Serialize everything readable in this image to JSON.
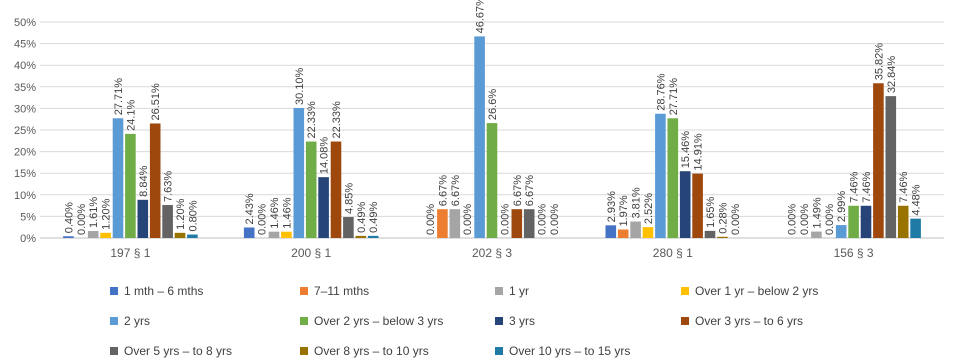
{
  "chart_data": {
    "type": "bar",
    "categories": [
      "197 § 1",
      "200 § 1",
      "202 § 3",
      "280 § 1",
      "156 § 3"
    ],
    "ylim": [
      0,
      50
    ],
    "yticks": [
      "0%",
      "5%",
      "10%",
      "15%",
      "20%",
      "25%",
      "30%",
      "35%",
      "40%",
      "45%",
      "50%"
    ],
    "grid": true,
    "legend_position": "bottom",
    "series": [
      {
        "name": "1 mth – 6 mths",
        "color": "#4472C4",
        "values": [
          0.4,
          2.43,
          0.0,
          2.93,
          0.0
        ],
        "labels": [
          "0.40%",
          "2.43%",
          "0.00%",
          "2.93%",
          "0.00%"
        ]
      },
      {
        "name": "7–11 mths",
        "color": "#ED7D31",
        "values": [
          0.0,
          0.0,
          6.67,
          1.97,
          0.0
        ],
        "labels": [
          "0.00%",
          "0.00%",
          "6.67%",
          "1.97%",
          "0.00%"
        ]
      },
      {
        "name": "1 yr",
        "color": "#A5A5A5",
        "values": [
          1.61,
          1.46,
          6.67,
          3.81,
          1.49
        ],
        "labels": [
          "1.61%",
          "1.46%",
          "6.67%",
          "3.81%",
          "1.49%"
        ]
      },
      {
        "name": "Over 1 yr – below 2 yrs",
        "color": "#FFC000",
        "values": [
          1.2,
          1.46,
          0.0,
          2.52,
          0.0
        ],
        "labels": [
          "1.20%",
          "1.46%",
          "0.00%",
          "2.52%",
          "0.00%"
        ]
      },
      {
        "name": "2 yrs",
        "color": "#5B9BD5",
        "values": [
          27.71,
          30.1,
          46.67,
          28.76,
          2.99
        ],
        "labels": [
          "27.71%",
          "30.10%",
          "46.67%",
          "28.76%",
          "2.99%"
        ]
      },
      {
        "name": "Over 2 yrs – below 3 yrs",
        "color": "#70AD47",
        "values": [
          24.1,
          22.33,
          26.6,
          27.71,
          7.46
        ],
        "labels": [
          "24.1%",
          "22.33%",
          "26.6%",
          "27.71%",
          "7.46%"
        ]
      },
      {
        "name": "3 yrs",
        "color": "#264478",
        "values": [
          8.84,
          14.08,
          0.0,
          15.46,
          7.46
        ],
        "labels": [
          "8.84%",
          "14.08%",
          "0.00%",
          "15.46%",
          "7.46%"
        ]
      },
      {
        "name": "Over 3 yrs – to 6 yrs",
        "color": "#9E480E",
        "values": [
          26.51,
          22.33,
          6.67,
          14.91,
          35.82
        ],
        "labels": [
          "26.51%",
          "22.33%",
          "6.67%",
          "14.91%",
          "35.82%"
        ]
      },
      {
        "name": "Over 5 yrs – to 8 yrs",
        "color": "#636363",
        "values": [
          7.63,
          4.85,
          6.67,
          1.65,
          32.84
        ],
        "labels": [
          "7.63%",
          "4.85%",
          "6.67%",
          "1.65%",
          "32.84%"
        ]
      },
      {
        "name": "Over 8 yrs – to 10 yrs",
        "color": "#997300",
        "values": [
          1.2,
          0.49,
          0.0,
          0.28,
          7.46
        ],
        "labels": [
          "1.20%",
          "0.49%",
          "0.00%",
          "0.28%",
          "7.46%"
        ]
      },
      {
        "name": "Over 10 yrs – to 15 yrs",
        "color": "#1F7BA6",
        "values": [
          0.8,
          0.49,
          0.0,
          0.0,
          4.48
        ],
        "labels": [
          "0.80%",
          "0.49%",
          "0.00%",
          "0.00%",
          "4.48%"
        ]
      }
    ]
  }
}
